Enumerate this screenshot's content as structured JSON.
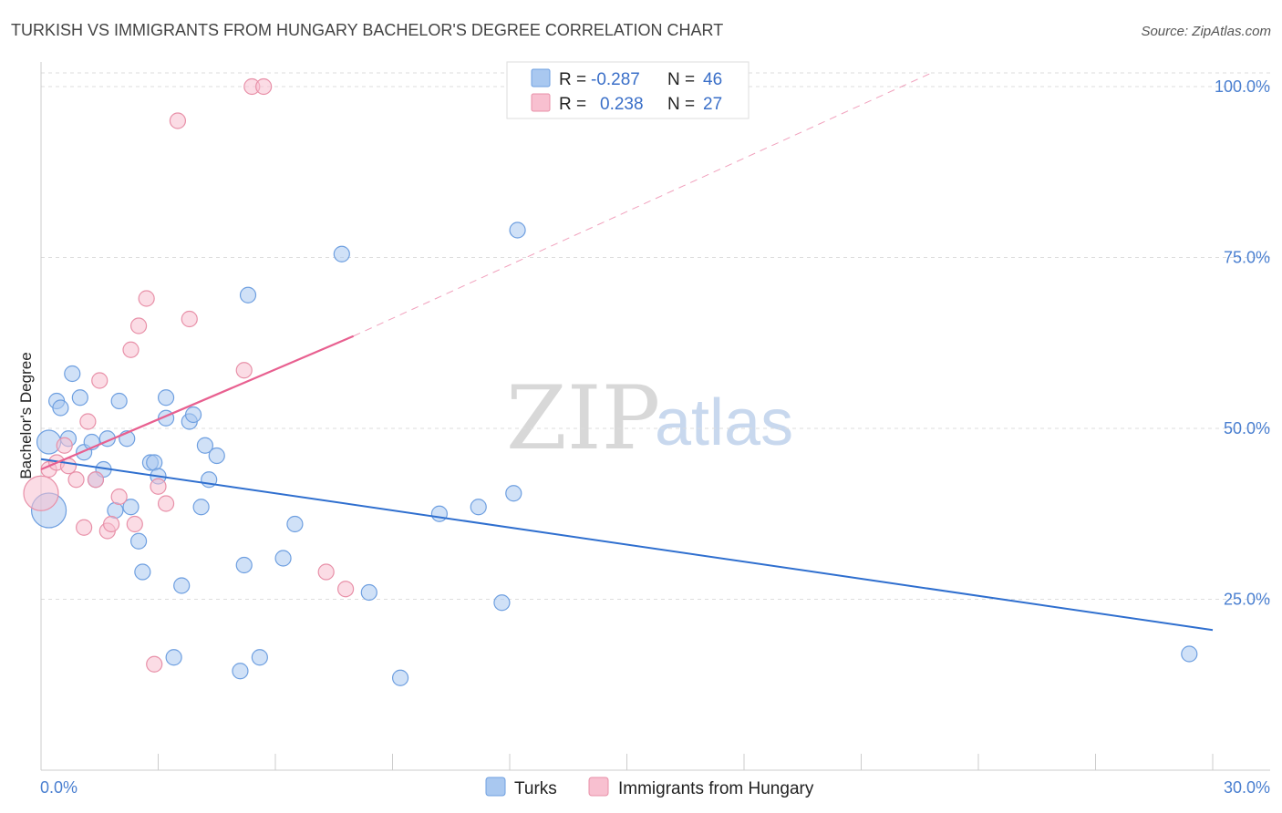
{
  "header": {
    "title": "TURKISH VS IMMIGRANTS FROM HUNGARY BACHELOR'S DEGREE CORRELATION CHART",
    "source": "Source: ZipAtlas.com"
  },
  "watermark": {
    "zip": "ZIP",
    "atlas": "atlas"
  },
  "legend_box": {
    "rows": [
      {
        "r_label": "R =",
        "r_value": "-0.287",
        "n_label": "N =",
        "n_value": "46",
        "color": "#a9c8f0",
        "stroke": "#6e9fe0"
      },
      {
        "r_label": "R =",
        "r_value": "0.238",
        "n_label": "N =",
        "n_value": "27",
        "color": "#f8c0d0",
        "stroke": "#e890a8"
      }
    ]
  },
  "bottom_legend": {
    "items": [
      {
        "label": "Turks",
        "color": "#a9c8f0",
        "stroke": "#6e9fe0"
      },
      {
        "label": "Immigrants from Hungary",
        "color": "#f8c0d0",
        "stroke": "#e890a8"
      }
    ]
  },
  "colors": {
    "turks_fill": "#a9c8f0",
    "turks_stroke": "#6e9fe0",
    "turks_line": "#2f6fcf",
    "hungary_fill": "#f8c0d0",
    "hungary_stroke": "#e890a8",
    "hungary_line": "#e86090",
    "grid": "#dddddd"
  },
  "chart_data": {
    "type": "scatter",
    "title": "TURKISH VS IMMIGRANTS FROM HUNGARY BACHELOR'S DEGREE CORRELATION CHART",
    "xlabel": "",
    "ylabel": "Bachelor's Degree",
    "xlim": [
      0,
      30
    ],
    "ylim": [
      0,
      102
    ],
    "x_tick_labels": {
      "min": "0.0%",
      "max": "30.0%"
    },
    "y_ticks": [
      {
        "value": 25,
        "label": "25.0%"
      },
      {
        "value": 50,
        "label": "50.0%"
      },
      {
        "value": 75,
        "label": "75.0%"
      },
      {
        "value": 100,
        "label": "100.0%"
      }
    ],
    "series": [
      {
        "name": "Turks",
        "R": -0.287,
        "N": 46,
        "points": [
          {
            "x": 0.2,
            "y": 38,
            "s": "l"
          },
          {
            "x": 0.2,
            "y": 48,
            "s": "m"
          },
          {
            "x": 0.4,
            "y": 54,
            "s": "n"
          },
          {
            "x": 0.5,
            "y": 53,
            "s": "n"
          },
          {
            "x": 0.7,
            "y": 48.5,
            "s": "n"
          },
          {
            "x": 0.8,
            "y": 58,
            "s": "n"
          },
          {
            "x": 1.0,
            "y": 54.5,
            "s": "n"
          },
          {
            "x": 1.1,
            "y": 46.5,
            "s": "n"
          },
          {
            "x": 1.3,
            "y": 48,
            "s": "n"
          },
          {
            "x": 1.4,
            "y": 42.5,
            "s": "n"
          },
          {
            "x": 1.6,
            "y": 44,
            "s": "n"
          },
          {
            "x": 1.7,
            "y": 48.5,
            "s": "n"
          },
          {
            "x": 1.9,
            "y": 38,
            "s": "n"
          },
          {
            "x": 2.0,
            "y": 54,
            "s": "n"
          },
          {
            "x": 2.2,
            "y": 48.5,
            "s": "n"
          },
          {
            "x": 2.3,
            "y": 38.5,
            "s": "n"
          },
          {
            "x": 2.5,
            "y": 33.5,
            "s": "n"
          },
          {
            "x": 2.6,
            "y": 29,
            "s": "n"
          },
          {
            "x": 2.8,
            "y": 45,
            "s": "n"
          },
          {
            "x": 2.9,
            "y": 45,
            "s": "n"
          },
          {
            "x": 3.0,
            "y": 43,
            "s": "n"
          },
          {
            "x": 3.2,
            "y": 51.5,
            "s": "n"
          },
          {
            "x": 3.2,
            "y": 54.5,
            "s": "n"
          },
          {
            "x": 3.4,
            "y": 16.5,
            "s": "n"
          },
          {
            "x": 3.6,
            "y": 27,
            "s": "n"
          },
          {
            "x": 3.8,
            "y": 51,
            "s": "n"
          },
          {
            "x": 3.9,
            "y": 52,
            "s": "n"
          },
          {
            "x": 4.1,
            "y": 38.5,
            "s": "n"
          },
          {
            "x": 4.2,
            "y": 47.5,
            "s": "n"
          },
          {
            "x": 4.3,
            "y": 42.5,
            "s": "n"
          },
          {
            "x": 4.5,
            "y": 46,
            "s": "n"
          },
          {
            "x": 5.1,
            "y": 14.5,
            "s": "n"
          },
          {
            "x": 5.2,
            "y": 30,
            "s": "n"
          },
          {
            "x": 5.3,
            "y": 69.5,
            "s": "n"
          },
          {
            "x": 5.6,
            "y": 16.5,
            "s": "n"
          },
          {
            "x": 6.2,
            "y": 31,
            "s": "n"
          },
          {
            "x": 6.5,
            "y": 36,
            "s": "n"
          },
          {
            "x": 7.7,
            "y": 75.5,
            "s": "n"
          },
          {
            "x": 8.4,
            "y": 26,
            "s": "n"
          },
          {
            "x": 9.2,
            "y": 13.5,
            "s": "n"
          },
          {
            "x": 10.2,
            "y": 37.5,
            "s": "n"
          },
          {
            "x": 11.2,
            "y": 38.5,
            "s": "n"
          },
          {
            "x": 11.8,
            "y": 24.5,
            "s": "n"
          },
          {
            "x": 12.1,
            "y": 40.5,
            "s": "n"
          },
          {
            "x": 12.2,
            "y": 79,
            "s": "n"
          },
          {
            "x": 29.4,
            "y": 17,
            "s": "n"
          }
        ],
        "trend": {
          "x": [
            0,
            30
          ],
          "y": [
            45.5,
            20.5
          ],
          "dashed_extension": false
        }
      },
      {
        "name": "Immigrants from Hungary",
        "R": 0.238,
        "N": 27,
        "points": [
          {
            "x": 0.0,
            "y": 40.5,
            "s": "l"
          },
          {
            "x": 0.2,
            "y": 44,
            "s": "n"
          },
          {
            "x": 0.4,
            "y": 45,
            "s": "n"
          },
          {
            "x": 0.6,
            "y": 47.5,
            "s": "n"
          },
          {
            "x": 0.7,
            "y": 44.5,
            "s": "n"
          },
          {
            "x": 0.9,
            "y": 42.5,
            "s": "n"
          },
          {
            "x": 1.1,
            "y": 35.5,
            "s": "n"
          },
          {
            "x": 1.2,
            "y": 51,
            "s": "n"
          },
          {
            "x": 1.4,
            "y": 42.5,
            "s": "n"
          },
          {
            "x": 1.5,
            "y": 57,
            "s": "n"
          },
          {
            "x": 1.7,
            "y": 35,
            "s": "n"
          },
          {
            "x": 1.8,
            "y": 36,
            "s": "n"
          },
          {
            "x": 2.0,
            "y": 40,
            "s": "n"
          },
          {
            "x": 2.3,
            "y": 61.5,
            "s": "n"
          },
          {
            "x": 2.4,
            "y": 36,
            "s": "n"
          },
          {
            "x": 2.5,
            "y": 65,
            "s": "n"
          },
          {
            "x": 2.7,
            "y": 69,
            "s": "n"
          },
          {
            "x": 2.9,
            "y": 15.5,
            "s": "n"
          },
          {
            "x": 3.0,
            "y": 41.5,
            "s": "n"
          },
          {
            "x": 3.2,
            "y": 39,
            "s": "n"
          },
          {
            "x": 3.5,
            "y": 95,
            "s": "n"
          },
          {
            "x": 3.8,
            "y": 66,
            "s": "n"
          },
          {
            "x": 5.2,
            "y": 58.5,
            "s": "n"
          },
          {
            "x": 5.4,
            "y": 100,
            "s": "n"
          },
          {
            "x": 5.7,
            "y": 100,
            "s": "n"
          },
          {
            "x": 7.3,
            "y": 29,
            "s": "n"
          },
          {
            "x": 7.8,
            "y": 26.5,
            "s": "n"
          }
        ],
        "trend": {
          "x": [
            0,
            8.0
          ],
          "y": [
            44,
            63.5
          ],
          "dashed_extension": {
            "x": [
              8.0,
              22.8
            ],
            "y": [
              63.5,
              102
            ]
          }
        }
      }
    ]
  }
}
